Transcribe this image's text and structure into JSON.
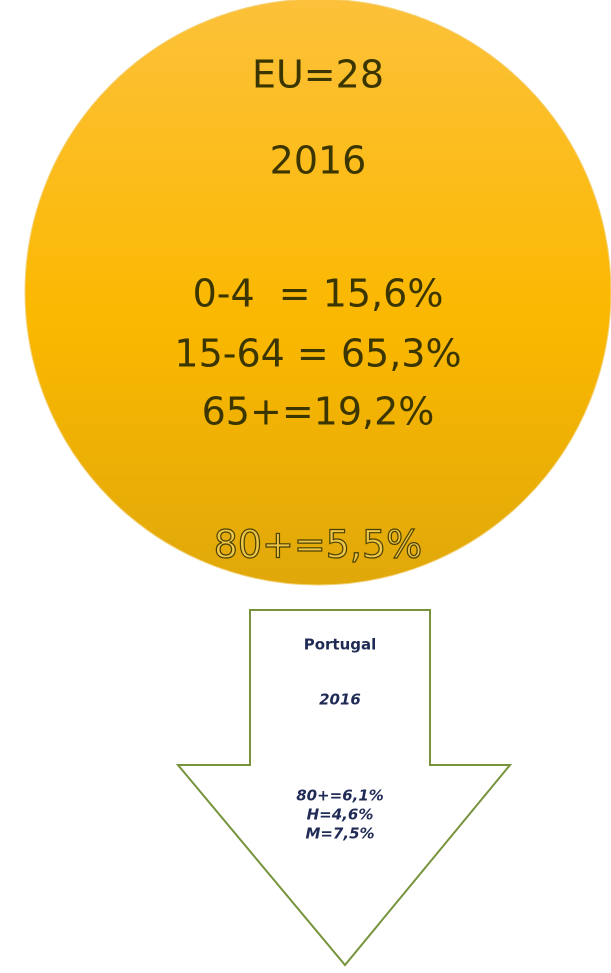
{
  "circle": {
    "title": "EU=28",
    "year": "2016",
    "groups": [
      "0-4  = 15,6%",
      "15-64 = 65,3%",
      "65+=19,2%"
    ],
    "highlight": "80+=5,5%"
  },
  "arrow": {
    "country": "Portugal",
    "year": "2016",
    "lines": [
      "80+=6,1%",
      "H=4,6%",
      "M=7,5%"
    ]
  }
}
